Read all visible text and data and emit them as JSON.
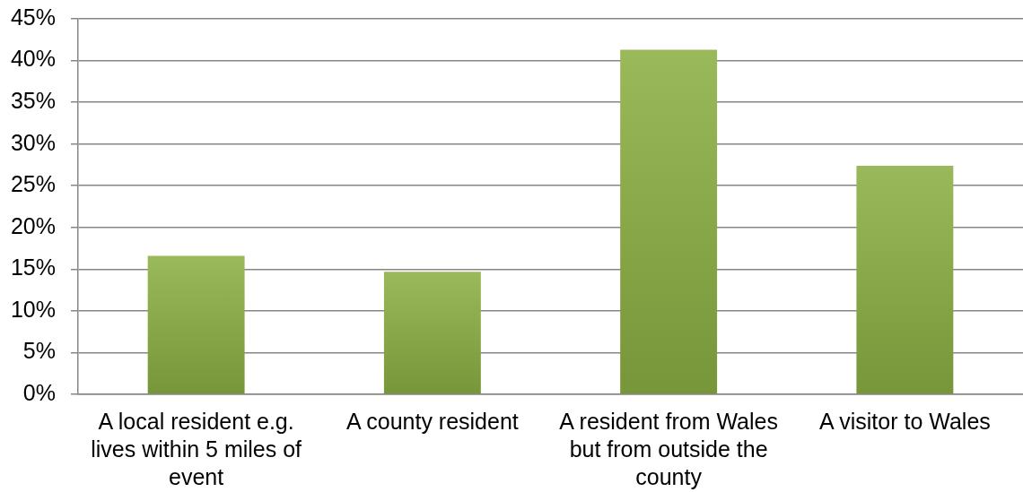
{
  "chart_data": {
    "type": "bar",
    "categories": [
      "A local resident e.g. lives within 5 miles of event",
      "A county resident",
      "A resident from Wales but from outside the county",
      "A visitor to Wales"
    ],
    "values": [
      16.6,
      14.7,
      41.3,
      27.4
    ],
    "color": "#8cb043",
    "ylim": [
      0,
      45
    ],
    "yticks": [
      {
        "value": 0,
        "label": "0%"
      },
      {
        "value": 5,
        "label": "5%"
      },
      {
        "value": 10,
        "label": "10%"
      },
      {
        "value": 15,
        "label": "15%"
      },
      {
        "value": 20,
        "label": "20%"
      },
      {
        "value": 25,
        "label": "25%"
      },
      {
        "value": 30,
        "label": "30%"
      },
      {
        "value": 35,
        "label": "35%"
      },
      {
        "value": 40,
        "label": "40%"
      },
      {
        "value": 45,
        "label": "45%"
      }
    ],
    "grid": "y"
  }
}
